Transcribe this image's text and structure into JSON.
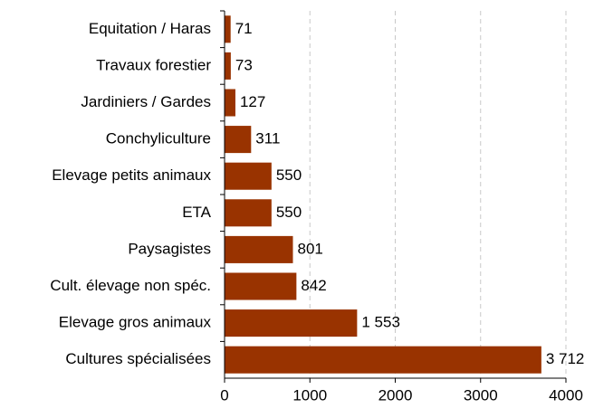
{
  "chart_data": {
    "type": "barh",
    "categories": [
      "Equitation / Haras",
      "Travaux forestier",
      "Jardiniers / Gardes",
      "Conchyliculture",
      "Elevage petits animaux",
      "ETA",
      "Paysagistes",
      "Cult. élevage non spéc.",
      "Elevage gros animaux",
      "Cultures spécialisées"
    ],
    "values": [
      71,
      73,
      127,
      311,
      550,
      550,
      801,
      842,
      1553,
      3712
    ],
    "value_labels": [
      "71",
      "73",
      "127",
      "311",
      "550",
      "550",
      "801",
      "842",
      "1 553",
      "3 712"
    ],
    "color": "#993300",
    "xlim": [
      0,
      4000
    ],
    "xticks": [
      0,
      1000,
      2000,
      3000,
      4000
    ],
    "grid": true
  }
}
